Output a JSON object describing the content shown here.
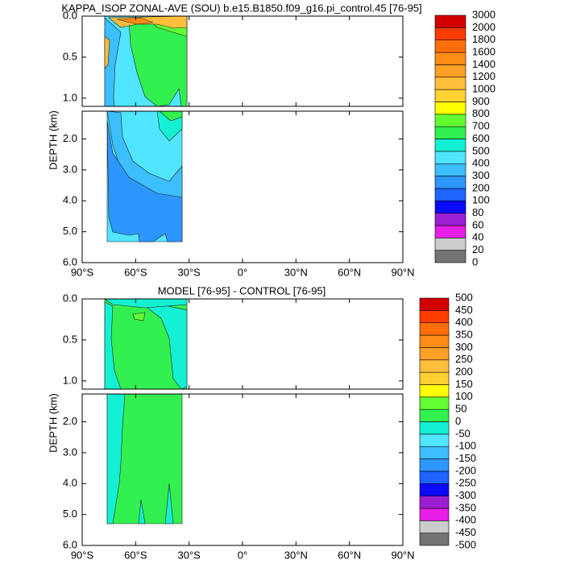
{
  "chart_data": [
    {
      "type": "contour",
      "title": "KAPPA_ISOP ZONAL-AVE (SOU) b.e15.B1850.f09_g16.pi_control.45 [76-95]",
      "ylabel": "DEPTH (km)",
      "xlim": [
        -90,
        90
      ],
      "xticks": [
        {
          "value": -90,
          "label": "90°S"
        },
        {
          "value": -60,
          "label": "60°S"
        },
        {
          "value": -30,
          "label": "30°S"
        },
        {
          "value": 0,
          "label": "0°"
        },
        {
          "value": 30,
          "label": "30°N"
        },
        {
          "value": 60,
          "label": "60°N"
        },
        {
          "value": 90,
          "label": "90°N"
        }
      ],
      "panels": [
        {
          "ylim": [
            0,
            1.1
          ],
          "yticks": [
            {
              "value": 0,
              "label": "0.0"
            },
            {
              "value": 0.5,
              "label": "0.5"
            },
            {
              "value": 1,
              "label": "1.0"
            }
          ]
        },
        {
          "ylim": [
            1.1,
            6
          ],
          "yticks": [
            {
              "value": 2,
              "label": "2.0"
            },
            {
              "value": 3,
              "label": "3.0"
            },
            {
              "value": 4,
              "label": "4.0"
            },
            {
              "value": 5,
              "label": "5.0"
            },
            {
              "value": 6,
              "label": "6.0"
            }
          ]
        }
      ],
      "levels": [
        0,
        20,
        40,
        60,
        80,
        100,
        200,
        300,
        400,
        500,
        600,
        700,
        800,
        900,
        1000,
        1200,
        1400,
        1600,
        1800,
        2000,
        3000
      ],
      "colors": [
        "#737373",
        "#cccccc",
        "#e61ee6",
        "#9b1ed2",
        "#0a0aff",
        "#1e64ff",
        "#2d96ff",
        "#3cbeff",
        "#50e6ff",
        "#14f0d2",
        "#32f050",
        "#64ff32",
        "#ffff00",
        "#ffd232",
        "#ffbe3c",
        "#ffa028",
        "#ff8c14",
        "#ff6e0a",
        "#ff3c00",
        "#d20000"
      ]
    },
    {
      "type": "contour",
      "title": "MODEL [76-95] - CONTROL [76-95]",
      "ylabel": "DEPTH (km)",
      "xlim": [
        -90,
        90
      ],
      "xticks": [
        {
          "value": -90,
          "label": "90°S"
        },
        {
          "value": -60,
          "label": "60°S"
        },
        {
          "value": -30,
          "label": "30°S"
        },
        {
          "value": 0,
          "label": "0°"
        },
        {
          "value": 30,
          "label": "30°N"
        },
        {
          "value": 60,
          "label": "60°N"
        },
        {
          "value": 90,
          "label": "90°N"
        }
      ],
      "panels": [
        {
          "ylim": [
            0,
            1.1
          ],
          "yticks": [
            {
              "value": 0,
              "label": "0.0"
            },
            {
              "value": 0.5,
              "label": "0.5"
            },
            {
              "value": 1,
              "label": "1.0"
            }
          ]
        },
        {
          "ylim": [
            1.1,
            6
          ],
          "yticks": [
            {
              "value": 2,
              "label": "2.0"
            },
            {
              "value": 3,
              "label": "3.0"
            },
            {
              "value": 4,
              "label": "4.0"
            },
            {
              "value": 5,
              "label": "5.0"
            },
            {
              "value": 6,
              "label": "6.0"
            }
          ]
        }
      ],
      "levels": [
        -500,
        -450,
        -400,
        -350,
        -300,
        -250,
        -200,
        -150,
        -100,
        -50,
        0,
        50,
        100,
        150,
        200,
        250,
        300,
        350,
        400,
        450,
        500
      ],
      "colors": [
        "#737373",
        "#cccccc",
        "#e61ee6",
        "#9b1ed2",
        "#0a0aff",
        "#1e64ff",
        "#2d96ff",
        "#3cbeff",
        "#50e6ff",
        "#14f0d2",
        "#32f050",
        "#64ff32",
        "#ffff00",
        "#ffd232",
        "#ffbe3c",
        "#ffa028",
        "#ff8c14",
        "#ff6e0a",
        "#ff3c00",
        "#d20000"
      ]
    }
  ]
}
